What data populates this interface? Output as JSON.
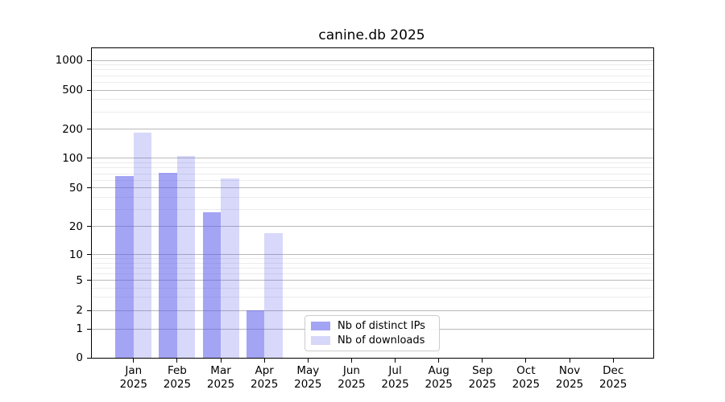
{
  "chart_data": {
    "type": "bar",
    "title": "canine.db 2025",
    "year": "2025",
    "months": [
      "Jan",
      "Feb",
      "Mar",
      "Apr",
      "May",
      "Jun",
      "Jul",
      "Aug",
      "Sep",
      "Oct",
      "Nov",
      "Dec"
    ],
    "categories": [
      "Jan 2025",
      "Feb 2025",
      "Mar 2025",
      "Apr 2025",
      "May 2025",
      "Jun 2025",
      "Jul 2025",
      "Aug 2025",
      "Sep 2025",
      "Oct 2025",
      "Nov 2025",
      "Dec 2025"
    ],
    "series": [
      {
        "name": "Nb of distinct IPs",
        "color": "#a4a4f4",
        "fill": "rgba(90,90,235,0.55)",
        "values": [
          66,
          71,
          28,
          2,
          0,
          0,
          0,
          0,
          0,
          0,
          0,
          0
        ]
      },
      {
        "name": "Nb of downloads",
        "color": "#d7d7fa",
        "fill": "rgba(90,90,235,0.24)",
        "values": [
          185,
          106,
          62,
          17,
          0,
          0,
          0,
          0,
          0,
          0,
          0,
          0
        ]
      }
    ],
    "yscale": "symlog",
    "ylim": [
      0,
      1300
    ],
    "yticks": [
      0,
      1,
      2,
      5,
      10,
      20,
      50,
      100,
      200,
      500,
      1000
    ],
    "yticks_minor": [
      3,
      4,
      6,
      7,
      8,
      9,
      30,
      40,
      60,
      70,
      80,
      90,
      300,
      400,
      600,
      700,
      800,
      900
    ],
    "grid": "on",
    "legend_position": "lower center",
    "colors": {
      "grid_major": "#b9b9b9",
      "grid_minor": "#ececec",
      "axis": "#000000",
      "text": "#000000",
      "legend_border": "#cccccc",
      "bar_base": "#5a5aeb"
    }
  }
}
